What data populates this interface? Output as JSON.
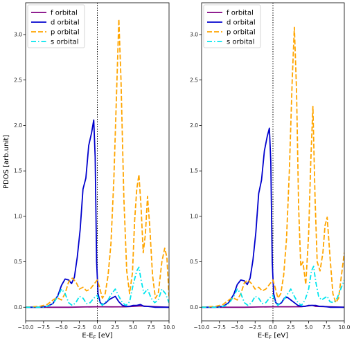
{
  "chart_data": [
    {
      "type": "line",
      "xlabel": "E-E_F [eV]",
      "ylabel": "PDOS [arb.unit]",
      "xlim": [
        -10,
        10
      ],
      "ylim": [
        -0.15,
        3.35
      ],
      "xticks": [
        -10.0,
        -7.5,
        -5.0,
        -2.5,
        0.0,
        2.5,
        5.0,
        7.5,
        10.0
      ],
      "yticks": [
        0.0,
        0.5,
        1.0,
        1.5,
        2.0,
        2.5,
        3.0
      ],
      "xtick_labels": [
        "−10.0",
        "−7.5",
        "−5.0",
        "−2.5",
        "0.0",
        "2.5",
        "5.0",
        "7.5",
        "10.0"
      ],
      "ytick_labels": [
        "0.0",
        "0.5",
        "1.0",
        "1.5",
        "2.0",
        "2.5",
        "3.0"
      ],
      "grid": false,
      "legend_position": "top-left",
      "vline": 0,
      "series": [
        {
          "name": "f orbital",
          "color": "#800080",
          "style": "solid",
          "x": [
            -10,
            -6,
            -4,
            -2,
            0,
            2,
            4,
            6,
            8,
            10
          ],
          "y": [
            0,
            0,
            0,
            0.003,
            0.005,
            0.004,
            0.005,
            0.015,
            0.006,
            0
          ]
        },
        {
          "name": "d orbital",
          "color": "#0000cd",
          "style": "solid",
          "x": [
            -10,
            -8,
            -7,
            -6.2,
            -5.5,
            -5.0,
            -4.5,
            -4.0,
            -3.6,
            -3.2,
            -2.8,
            -2.4,
            -2.0,
            -1.6,
            -1.2,
            -0.8,
            -0.5,
            -0.3,
            -0.1,
            0.1,
            0.4,
            0.8,
            1.2,
            1.6,
            2.0,
            2.5,
            3.0,
            3.5,
            4.0,
            4.5,
            5.0,
            5.5,
            6.0,
            6.5,
            7.0,
            8.0,
            9.0,
            10.0
          ],
          "y": [
            0,
            0,
            0.01,
            0.04,
            0.13,
            0.24,
            0.31,
            0.3,
            0.26,
            0.33,
            0.55,
            0.85,
            1.3,
            1.42,
            1.78,
            1.92,
            2.06,
            1.65,
            0.5,
            0.15,
            0.05,
            0.03,
            0.05,
            0.08,
            0.1,
            0.12,
            0.06,
            0.02,
            0.01,
            0.01,
            0.02,
            0.02,
            0.03,
            0.01,
            0.01,
            0,
            0,
            0
          ]
        },
        {
          "name": "p orbital",
          "color": "#ffa500",
          "style": "dashed",
          "x": [
            -10,
            -8,
            -7,
            -6.5,
            -6.0,
            -5.5,
            -5.0,
            -4.5,
            -4.0,
            -3.5,
            -3.0,
            -2.5,
            -2.0,
            -1.5,
            -1.0,
            -0.5,
            0.0,
            0.3,
            0.7,
            1.1,
            1.5,
            1.9,
            2.3,
            2.7,
            3.0,
            3.3,
            3.7,
            4.1,
            4.5,
            4.9,
            5.2,
            5.5,
            5.8,
            6.1,
            6.4,
            6.7,
            7.0,
            7.3,
            7.7,
            8.1,
            8.5,
            9.0,
            9.4,
            9.7,
            10.0
          ],
          "y": [
            0,
            0.01,
            0.03,
            0.06,
            0.09,
            0.1,
            0.08,
            0.15,
            0.28,
            0.32,
            0.28,
            0.2,
            0.22,
            0.18,
            0.2,
            0.25,
            0.3,
            0.22,
            0.1,
            0.15,
            0.35,
            0.7,
            1.4,
            2.4,
            3.17,
            2.5,
            1.2,
            0.4,
            0.15,
            0.38,
            0.95,
            1.3,
            1.46,
            1.1,
            0.6,
            0.8,
            1.22,
            0.9,
            0.35,
            0.1,
            0.15,
            0.5,
            0.65,
            0.55,
            0.12
          ]
        },
        {
          "name": "s orbital",
          "color": "#00e5ee",
          "style": "dashdot",
          "x": [
            -10,
            -7.5,
            -6.5,
            -6.0,
            -5.5,
            -5.0,
            -4.5,
            -4.0,
            -3.5,
            -3.0,
            -2.5,
            -2.0,
            -1.5,
            -1.0,
            -0.5,
            0.0,
            0.3,
            0.7,
            1.0,
            1.5,
            2.0,
            2.5,
            3.0,
            3.5,
            4.0,
            4.5,
            5.0,
            5.5,
            5.8,
            6.1,
            6.5,
            7.0,
            7.5,
            8.0,
            8.5,
            9.0,
            9.5,
            10.0
          ],
          "y": [
            0,
            0,
            0.02,
            0.06,
            0.12,
            0.2,
            0.15,
            0.05,
            0.02,
            0.05,
            0.12,
            0.1,
            0.04,
            0.05,
            0.1,
            0.13,
            0.06,
            0.02,
            0.05,
            0.08,
            0.15,
            0.2,
            0.12,
            0.05,
            0.02,
            0.06,
            0.25,
            0.4,
            0.44,
            0.3,
            0.15,
            0.2,
            0.1,
            0.05,
            0.08,
            0.2,
            0.15,
            0.05
          ]
        }
      ]
    },
    {
      "type": "line",
      "xlabel": "E-E_F [eV]",
      "ylabel": "",
      "xlim": [
        -10,
        10
      ],
      "ylim": [
        -0.15,
        3.35
      ],
      "xticks": [
        -10.0,
        -7.5,
        -5.0,
        -2.5,
        0.0,
        2.5,
        5.0,
        7.5,
        10.0
      ],
      "yticks": [
        0.0,
        0.5,
        1.0,
        1.5,
        2.0,
        2.5,
        3.0
      ],
      "xtick_labels": [
        "−10.0",
        "−7.5",
        "−5.0",
        "−2.5",
        "0.0",
        "2.5",
        "5.0",
        "7.5",
        "10.0"
      ],
      "ytick_labels": [
        "0.0",
        "0.5",
        "1.0",
        "1.5",
        "2.0",
        "2.5",
        "3.0"
      ],
      "grid": false,
      "legend_position": "top-left",
      "vline": 0,
      "series": [
        {
          "name": "f orbital",
          "color": "#800080",
          "style": "solid",
          "x": [
            -10,
            -6,
            -4,
            -2,
            0,
            2,
            4,
            5.5,
            6,
            8,
            10
          ],
          "y": [
            0,
            0,
            0,
            0.003,
            0.005,
            0.005,
            0.006,
            0.02,
            0.01,
            0.005,
            0
          ]
        },
        {
          "name": "d orbital",
          "color": "#0000cd",
          "style": "solid",
          "x": [
            -10,
            -8,
            -7,
            -6.2,
            -5.5,
            -5.0,
            -4.5,
            -4.0,
            -3.6,
            -3.2,
            -2.8,
            -2.4,
            -2.0,
            -1.6,
            -1.2,
            -0.8,
            -0.5,
            -0.3,
            -0.1,
            0.1,
            0.4,
            0.8,
            1.2,
            1.6,
            2.0,
            2.5,
            3.0,
            3.5,
            4.0,
            4.5,
            5.0,
            5.5,
            6.0,
            6.5,
            7.0,
            8.0,
            9.0,
            10.0
          ],
          "y": [
            0,
            0,
            0.01,
            0.05,
            0.14,
            0.25,
            0.3,
            0.29,
            0.25,
            0.32,
            0.52,
            0.82,
            1.25,
            1.4,
            1.72,
            1.88,
            1.97,
            1.6,
            0.5,
            0.15,
            0.05,
            0.03,
            0.05,
            0.1,
            0.11,
            0.08,
            0.05,
            0.02,
            0.01,
            0.01,
            0.02,
            0.02,
            0.02,
            0.01,
            0.01,
            0,
            0,
            0
          ]
        },
        {
          "name": "p orbital",
          "color": "#ffa500",
          "style": "dashed",
          "x": [
            -10,
            -8,
            -7,
            -6.5,
            -6.0,
            -5.5,
            -5.0,
            -4.5,
            -4.0,
            -3.5,
            -3.0,
            -2.5,
            -2.0,
            -1.5,
            -1.0,
            -0.5,
            0.0,
            0.3,
            0.7,
            1.1,
            1.5,
            1.9,
            2.3,
            2.7,
            3.0,
            3.3,
            3.6,
            3.9,
            4.2,
            4.6,
            5.0,
            5.3,
            5.6,
            5.9,
            6.2,
            6.6,
            7.0,
            7.3,
            7.6,
            8.0,
            8.4,
            8.8,
            9.2,
            9.6,
            10.0
          ],
          "y": [
            0,
            0.01,
            0.03,
            0.06,
            0.09,
            0.1,
            0.08,
            0.15,
            0.27,
            0.3,
            0.26,
            0.2,
            0.22,
            0.18,
            0.2,
            0.25,
            0.3,
            0.22,
            0.1,
            0.15,
            0.35,
            0.75,
            1.5,
            2.5,
            3.08,
            2.4,
            1.1,
            0.45,
            0.5,
            0.25,
            0.8,
            1.6,
            2.21,
            1.2,
            0.5,
            0.4,
            0.6,
            0.9,
            0.99,
            0.55,
            0.15,
            0.05,
            0.1,
            0.35,
            0.6
          ]
        },
        {
          "name": "s orbital",
          "color": "#00e5ee",
          "style": "dashdot",
          "x": [
            -10,
            -7.5,
            -6.5,
            -6.0,
            -5.5,
            -5.0,
            -4.5,
            -4.0,
            -3.5,
            -3.0,
            -2.5,
            -2.0,
            -1.5,
            -1.0,
            -0.5,
            0.0,
            0.3,
            0.7,
            1.0,
            1.5,
            2.0,
            2.5,
            3.0,
            3.5,
            4.0,
            4.5,
            5.0,
            5.4,
            5.7,
            6.0,
            6.4,
            6.8,
            7.2,
            7.6,
            8.0,
            8.5,
            9.0,
            9.5,
            10.0
          ],
          "y": [
            0,
            0,
            0.02,
            0.06,
            0.12,
            0.2,
            0.15,
            0.05,
            0.02,
            0.05,
            0.12,
            0.1,
            0.04,
            0.05,
            0.1,
            0.13,
            0.06,
            0.02,
            0.05,
            0.08,
            0.14,
            0.2,
            0.12,
            0.05,
            0.02,
            0.08,
            0.2,
            0.4,
            0.45,
            0.28,
            0.12,
            0.08,
            0.1,
            0.12,
            0.06,
            0.05,
            0.1,
            0.2,
            0.3
          ]
        }
      ]
    }
  ]
}
